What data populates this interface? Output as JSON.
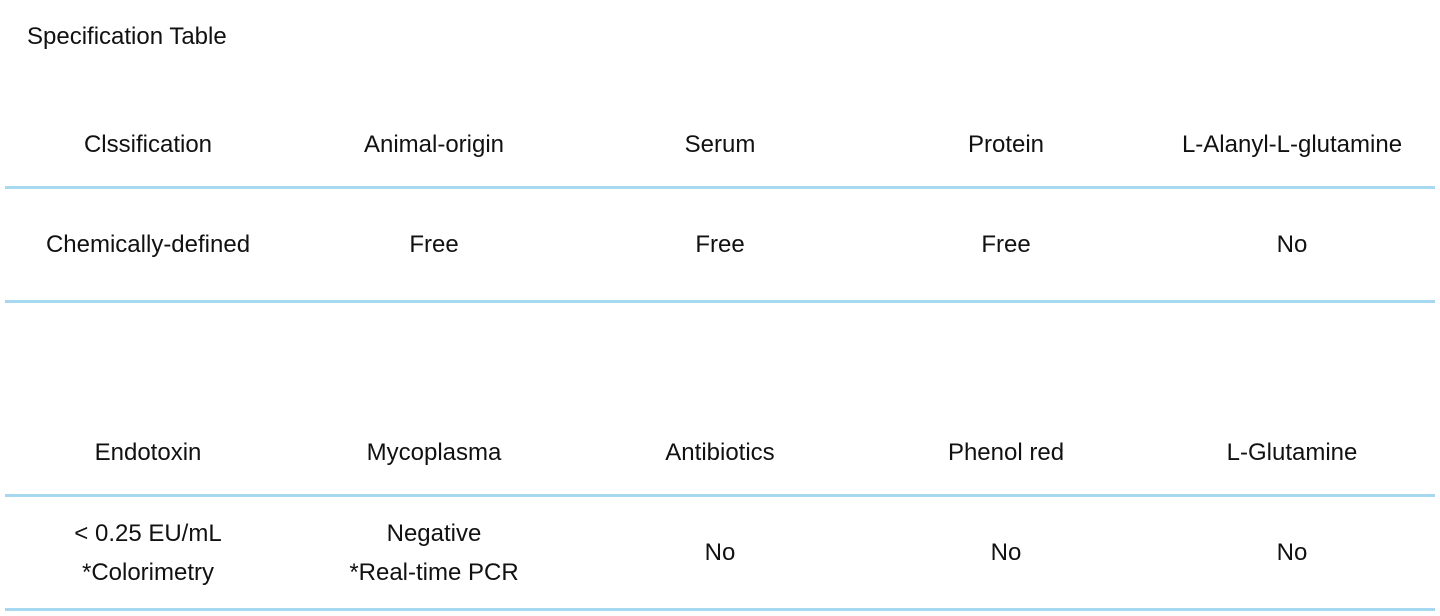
{
  "title": "Specification Table",
  "tables": [
    {
      "headers": [
        "Clssification",
        "Animal-origin",
        "Serum",
        "Protein",
        "L-Alanyl-L-glutamine"
      ],
      "values": [
        "Chemically-defined",
        "Free",
        "Free",
        "Free",
        "No"
      ]
    },
    {
      "headers": [
        "Endotoxin",
        "Mycoplasma",
        "Antibiotics",
        "Phenol red",
        "L-Glutamine"
      ],
      "values": [
        [
          "< 0.25 EU/mL",
          "*Colorimetry"
        ],
        [
          "Negative",
          "*Real-time PCR"
        ],
        [
          "No"
        ],
        [
          "No"
        ],
        [
          "No"
        ]
      ]
    }
  ],
  "colors": {
    "rule": "#a6d8f0",
    "text": "#111111"
  }
}
